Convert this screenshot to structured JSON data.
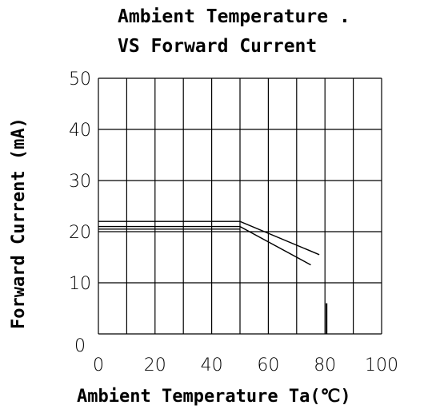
{
  "chart_data": {
    "type": "line",
    "title_line1": "Ambient Temperature .",
    "title_line2": "VS Forward Current",
    "xlabel": "Ambient Temperature Ta(℃)",
    "ylabel": "Forward Current (mA)",
    "xlim": [
      0,
      100
    ],
    "ylim": [
      0,
      50
    ],
    "x_ticks": [
      "0",
      "20",
      "40",
      "60",
      "80",
      "100"
    ],
    "y_ticks": [
      "0",
      "10",
      "20",
      "30",
      "40",
      "50"
    ],
    "grid": true,
    "series": [
      {
        "x": [
          0,
          50,
          78
        ],
        "y": [
          22,
          22,
          15.5
        ]
      },
      {
        "x": [
          0,
          50,
          75
        ],
        "y": [
          21,
          21,
          13.5
        ]
      },
      {
        "x": [
          0,
          50
        ],
        "y": [
          20.5,
          20.5
        ]
      }
    ],
    "marker": {
      "x": 80,
      "y": [
        0,
        6
      ]
    }
  }
}
